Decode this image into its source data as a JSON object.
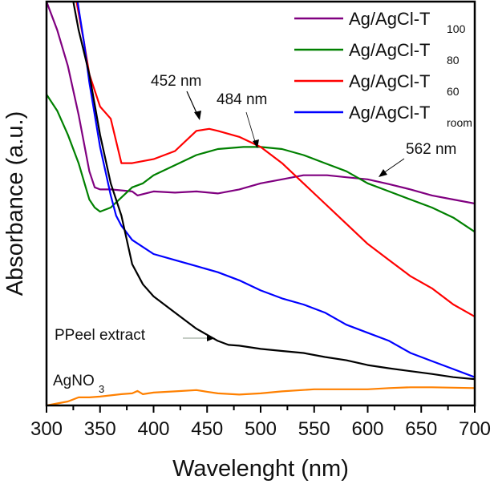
{
  "chart_data": {
    "type": "line",
    "title": "",
    "xlabel": "Wavelenght (nm)",
    "ylabel": "Absorbance (a.u.)",
    "xlim": [
      300,
      700
    ],
    "ylim": [
      0,
      1
    ],
    "xticks": [
      300,
      350,
      400,
      450,
      500,
      550,
      600,
      650,
      700
    ],
    "yticks": [],
    "grid": false,
    "legend_position": "top-right",
    "series": [
      {
        "name": "Ag/AgCl-T100",
        "label_main": "Ag/AgCl-T",
        "label_sub": "100",
        "color": "#800080",
        "x": [
          300,
          310,
          320,
          330,
          340,
          345,
          350,
          360,
          380,
          385,
          400,
          420,
          440,
          460,
          480,
          500,
          520,
          540,
          562,
          580,
          600,
          620,
          640,
          660,
          680,
          700
        ],
        "y": [
          1.0,
          0.93,
          0.84,
          0.72,
          0.58,
          0.54,
          0.535,
          0.535,
          0.53,
          0.52,
          0.53,
          0.527,
          0.53,
          0.525,
          0.535,
          0.55,
          0.56,
          0.57,
          0.57,
          0.565,
          0.56,
          0.548,
          0.535,
          0.52,
          0.51,
          0.5
        ]
      },
      {
        "name": "Ag/AgCl-T80",
        "label_main": "Ag/AgCl-T",
        "label_sub": "80",
        "color": "#008000",
        "x": [
          300,
          310,
          320,
          330,
          340,
          345,
          350,
          360,
          370,
          380,
          385,
          390,
          400,
          420,
          440,
          460,
          484,
          500,
          520,
          540,
          560,
          580,
          600,
          620,
          640,
          660,
          680,
          700
        ],
        "y": [
          0.77,
          0.73,
          0.67,
          0.6,
          0.51,
          0.49,
          0.48,
          0.49,
          0.515,
          0.54,
          0.545,
          0.55,
          0.57,
          0.595,
          0.62,
          0.635,
          0.64,
          0.64,
          0.635,
          0.62,
          0.6,
          0.58,
          0.55,
          0.53,
          0.51,
          0.49,
          0.465,
          0.43
        ]
      },
      {
        "name": "Ag/AgCl-T60",
        "label_main": "Ag/AgCl-T",
        "label_sub": "60",
        "color": "#ff0000",
        "x": [
          328,
          335,
          340,
          350,
          360,
          370,
          380,
          400,
          420,
          440,
          452,
          460,
          480,
          500,
          520,
          540,
          560,
          580,
          600,
          620,
          640,
          660,
          680,
          700
        ],
        "y": [
          1.0,
          0.9,
          0.82,
          0.74,
          0.71,
          0.6,
          0.6,
          0.61,
          0.63,
          0.68,
          0.685,
          0.68,
          0.665,
          0.64,
          0.6,
          0.55,
          0.5,
          0.45,
          0.4,
          0.36,
          0.32,
          0.29,
          0.25,
          0.22
        ]
      },
      {
        "name": "Ag/AgCl-Troom",
        "label_main": "Ag/AgCl-T",
        "label_sub": "room",
        "color": "#0000ff",
        "x": [
          329,
          335,
          340,
          350,
          360,
          365,
          370,
          380,
          400,
          420,
          440,
          460,
          480,
          500,
          520,
          540,
          560,
          580,
          600,
          620,
          640,
          660,
          680,
          700
        ],
        "y": [
          1.0,
          0.9,
          0.8,
          0.64,
          0.52,
          0.47,
          0.445,
          0.41,
          0.375,
          0.36,
          0.345,
          0.33,
          0.31,
          0.285,
          0.265,
          0.25,
          0.23,
          0.2,
          0.18,
          0.16,
          0.13,
          0.11,
          0.09,
          0.07
        ]
      },
      {
        "name": "PPeel extract",
        "color": "#000000",
        "x": [
          325,
          330,
          340,
          350,
          360,
          370,
          380,
          385,
          390,
          400,
          420,
          440,
          460,
          470,
          480,
          500,
          520,
          540,
          560,
          580,
          600,
          620,
          640,
          660,
          680,
          700
        ],
        "y": [
          1.0,
          0.93,
          0.82,
          0.67,
          0.55,
          0.47,
          0.35,
          0.325,
          0.3,
          0.27,
          0.23,
          0.19,
          0.16,
          0.15,
          0.148,
          0.14,
          0.135,
          0.13,
          0.12,
          0.112,
          0.1,
          0.092,
          0.085,
          0.078,
          0.07,
          0.065
        ]
      },
      {
        "name": "AgNO3",
        "color": "#ff8000",
        "x": [
          300,
          310,
          320,
          330,
          340,
          350,
          370,
          380,
          385,
          390,
          400,
          420,
          440,
          450,
          460,
          480,
          500,
          520,
          550,
          580,
          600,
          620,
          640,
          660,
          680,
          700
        ],
        "y": [
          0.0,
          0.005,
          0.01,
          0.02,
          0.02,
          0.022,
          0.028,
          0.03,
          0.036,
          0.028,
          0.032,
          0.035,
          0.038,
          0.034,
          0.03,
          0.027,
          0.03,
          0.035,
          0.04,
          0.04,
          0.04,
          0.043,
          0.045,
          0.045,
          0.044,
          0.043
        ]
      }
    ],
    "legend": [
      {
        "main": "Ag/AgCl-T",
        "sub": "100",
        "color": "#800080"
      },
      {
        "main": "Ag/AgCl-T",
        "sub": "80",
        "color": "#008000"
      },
      {
        "main": "Ag/AgCl-T",
        "sub": "60",
        "color": "#ff0000"
      },
      {
        "main": "Ag/AgCl-T",
        "sub": "room",
        "color": "#0000ff"
      }
    ],
    "annotations": [
      {
        "text": "452 nm",
        "x": 452,
        "y": 0.685
      },
      {
        "text": "484 nm",
        "x": 484,
        "y": 0.64
      },
      {
        "text": "562 nm",
        "x": 562,
        "y": 0.57
      },
      {
        "text": "PPeel extract",
        "x": 460,
        "y": 0.16
      },
      {
        "text_main": "AgNO",
        "text_sub": "3",
        "x": 305,
        "y": 0.06
      }
    ]
  }
}
